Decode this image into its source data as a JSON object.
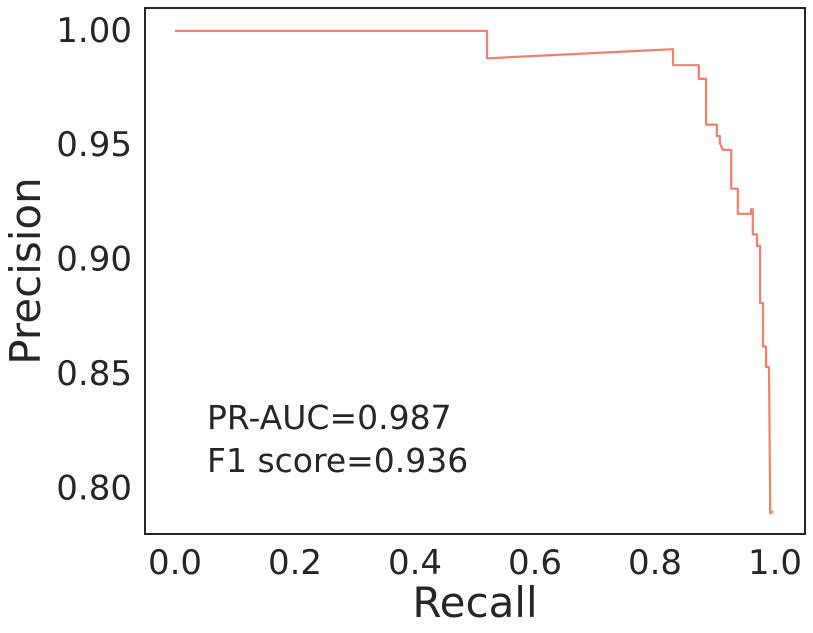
{
  "chart_data": {
    "type": "line",
    "title": "",
    "xlabel": "Recall",
    "ylabel": "Precision",
    "xlim": [
      -0.05,
      1.05
    ],
    "ylim": [
      0.78,
      1.01
    ],
    "xticks": [
      0.0,
      0.2,
      0.4,
      0.6,
      0.8,
      1.0
    ],
    "xtick_labels": [
      "0.0",
      "0.2",
      "0.4",
      "0.6",
      "0.8",
      "1.0"
    ],
    "yticks": [
      0.8,
      0.85,
      0.9,
      0.95,
      1.0
    ],
    "ytick_labels": [
      "0.80",
      "0.85",
      "0.90",
      "0.95",
      "1.00"
    ],
    "grid": false,
    "legend": "none",
    "annotations": [
      "PR-AUC=0.987",
      "F1 score=0.936"
    ],
    "series": [
      {
        "color": "#f08070",
        "x": [
          0.0,
          0.52,
          0.52,
          0.83,
          0.83,
          0.873,
          0.873,
          0.885,
          0.885,
          0.903,
          0.903,
          0.908,
          0.908,
          0.913,
          0.913,
          0.927,
          0.927,
          0.938,
          0.938,
          0.96,
          0.96,
          0.963,
          0.963,
          0.97,
          0.97,
          0.975,
          0.975,
          0.98,
          0.98,
          0.985,
          0.985,
          0.99,
          0.99,
          0.992,
          0.997
        ],
        "y": [
          1.0,
          1.0,
          0.988,
          0.992,
          0.985,
          0.985,
          0.979,
          0.979,
          0.959,
          0.959,
          0.954,
          0.954,
          0.951,
          0.948,
          0.948,
          0.948,
          0.931,
          0.931,
          0.92,
          0.92,
          0.922,
          0.922,
          0.911,
          0.911,
          0.906,
          0.906,
          0.881,
          0.881,
          0.862,
          0.862,
          0.853,
          0.853,
          0.853,
          0.789,
          0.79
        ]
      }
    ]
  }
}
